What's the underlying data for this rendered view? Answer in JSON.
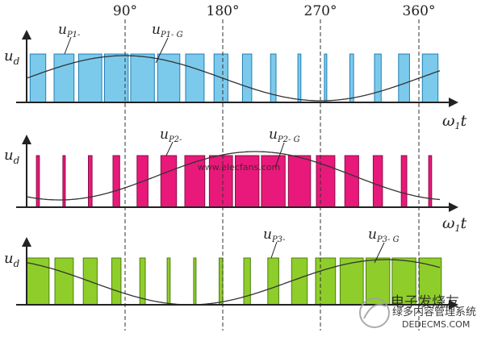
{
  "angles": [
    "90°",
    "180°",
    "270°",
    "360°"
  ],
  "axis_label_y": "u",
  "axis_label_y_sub": "d",
  "axis_label_x_main": "ω",
  "axis_label_x_sub": "1",
  "axis_label_x_t": "t",
  "panels": [
    {
      "pulse_label": "u",
      "pulse_label_sub": "P1-",
      "sine_label": "u",
      "sine_label_sub": "P1- G",
      "fill": "#7ccaeb",
      "stroke": "#1f7fb4",
      "phase_deg": 0
    },
    {
      "pulse_label": "u",
      "pulse_label_sub": "P2-",
      "sine_label": "u",
      "sine_label_sub": "P2- G",
      "fill": "#e8197a",
      "stroke": "#8a0e46",
      "phase_deg": 120
    },
    {
      "pulse_label": "u",
      "pulse_label_sub": "P3-",
      "sine_label": "u",
      "sine_label_sub": "P3- G",
      "fill": "#8fce2a",
      "stroke": "#4d7d12",
      "phase_deg": 240
    }
  ],
  "watermark_center": "www.elecfans.com",
  "watermark_brand": "电子发烧友",
  "watermark_cn": "绿多内容管理系统",
  "watermark_en": "DEDECMS.COM"
}
